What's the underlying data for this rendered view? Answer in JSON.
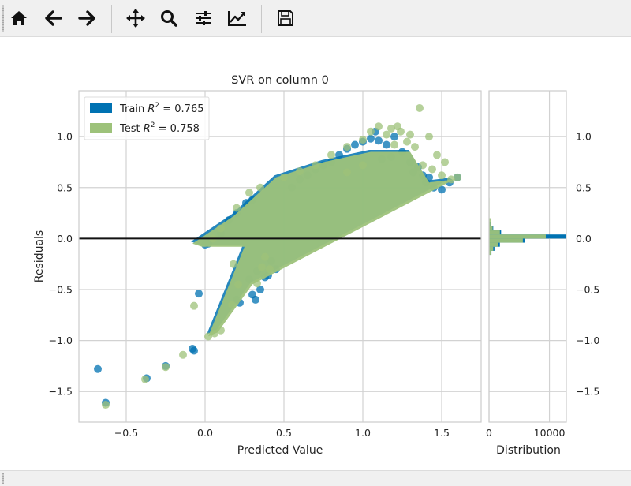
{
  "toolbar": {
    "buttons": [
      {
        "name": "home-button",
        "icon": "home-icon"
      },
      {
        "name": "back-button",
        "icon": "arrow-left-icon"
      },
      {
        "name": "forward-button",
        "icon": "arrow-right-icon"
      },
      {
        "name": "pan-button",
        "icon": "move-icon"
      },
      {
        "name": "zoom-button",
        "icon": "magnifier-icon"
      },
      {
        "name": "subplots-button",
        "icon": "sliders-icon"
      },
      {
        "name": "edit-axes-button",
        "icon": "line-chart-icon"
      },
      {
        "name": "save-button",
        "icon": "floppy-disk-icon"
      }
    ]
  },
  "status": {
    "text": ""
  },
  "chart_data": {
    "type": "scatter",
    "title": "SVR on column 0",
    "xlabel": "Predicted Value",
    "ylabel": "Residuals",
    "xlim": [
      -0.8,
      1.75
    ],
    "ylim": [
      -1.8,
      1.45
    ],
    "xticks": [
      -0.5,
      0.0,
      0.5,
      1.0,
      1.5
    ],
    "xtick_labels": [
      "−0.5",
      "0.0",
      "0.5",
      "1.0",
      "1.5"
    ],
    "yticks": [
      -1.5,
      -1.0,
      -0.5,
      0.0,
      0.5,
      1.0
    ],
    "ytick_labels": [
      "−1.5",
      "−1.0",
      "−0.5",
      "0.0",
      "0.5",
      "1.0"
    ],
    "grid": true,
    "legend_position": "upper-left",
    "zero_line": 0.0,
    "series": [
      {
        "name": "Train",
        "r2_label": "Train R² = 0.765",
        "label_prefix": "Train ",
        "label_suffix": " = 0.765",
        "color": "#0072b2",
        "points": [
          [
            -0.68,
            -1.28
          ],
          [
            -0.63,
            -1.61
          ],
          [
            -0.37,
            -1.37
          ],
          [
            -0.25,
            -1.25
          ],
          [
            -0.08,
            -1.08
          ],
          [
            -0.07,
            -1.1
          ],
          [
            -0.04,
            -0.54
          ],
          [
            0.0,
            -0.06
          ],
          [
            0.02,
            -0.05
          ],
          [
            0.2,
            -0.6
          ],
          [
            0.22,
            -0.63
          ],
          [
            0.28,
            -0.4
          ],
          [
            0.3,
            -0.55
          ],
          [
            0.32,
            -0.6
          ],
          [
            0.35,
            -0.5
          ],
          [
            0.38,
            -0.38
          ],
          [
            0.4,
            -0.36
          ],
          [
            0.45,
            -0.3
          ],
          [
            0.33,
            -0.32
          ],
          [
            0.42,
            -0.22
          ],
          [
            0.1,
            0.05
          ],
          [
            0.15,
            0.18
          ],
          [
            0.2,
            0.25
          ],
          [
            0.26,
            0.35
          ],
          [
            0.3,
            0.38
          ],
          [
            0.55,
            0.5
          ],
          [
            0.6,
            0.58
          ],
          [
            0.65,
            0.62
          ],
          [
            0.7,
            0.68
          ],
          [
            0.75,
            0.72
          ],
          [
            0.8,
            0.75
          ],
          [
            0.85,
            0.82
          ],
          [
            0.9,
            0.88
          ],
          [
            0.95,
            0.92
          ],
          [
            1.0,
            0.95
          ],
          [
            1.05,
            0.98
          ],
          [
            1.1,
            0.96
          ],
          [
            1.15,
            0.92
          ],
          [
            1.2,
            1.0
          ],
          [
            1.25,
            0.85
          ],
          [
            1.3,
            0.75
          ],
          [
            1.35,
            0.7
          ],
          [
            1.4,
            0.55
          ],
          [
            1.45,
            0.5
          ],
          [
            1.5,
            0.48
          ],
          [
            1.55,
            0.55
          ],
          [
            1.6,
            0.6
          ],
          [
            1.12,
            0.78
          ],
          [
            1.18,
            0.8
          ],
          [
            1.08,
            1.05
          ],
          [
            1.32,
            0.65
          ],
          [
            1.38,
            0.62
          ],
          [
            1.42,
            0.6
          ]
        ]
      },
      {
        "name": "Test",
        "r2_label": "Test R² = 0.758",
        "label_prefix": "Test ",
        "label_suffix": " = 0.758",
        "color": "#9dc27a",
        "points": [
          [
            -0.63,
            -1.63
          ],
          [
            -0.38,
            -1.38
          ],
          [
            -0.25,
            -1.26
          ],
          [
            -0.14,
            -1.14
          ],
          [
            -0.07,
            -0.66
          ],
          [
            0.02,
            -0.96
          ],
          [
            0.06,
            -0.93
          ],
          [
            0.1,
            -0.9
          ],
          [
            0.17,
            -0.65
          ],
          [
            0.21,
            -0.45
          ],
          [
            0.18,
            -0.25
          ],
          [
            0.36,
            -0.28
          ],
          [
            0.38,
            -0.18
          ],
          [
            0.33,
            -0.44
          ],
          [
            0.41,
            -0.3
          ],
          [
            0.05,
            0.0
          ],
          [
            0.1,
            0.1
          ],
          [
            0.2,
            0.3
          ],
          [
            0.28,
            0.45
          ],
          [
            0.35,
            0.5
          ],
          [
            0.5,
            0.6
          ],
          [
            0.6,
            0.66
          ],
          [
            0.7,
            0.72
          ],
          [
            0.8,
            0.82
          ],
          [
            0.9,
            0.9
          ],
          [
            1.0,
            0.97
          ],
          [
            1.1,
            1.1
          ],
          [
            1.18,
            1.08
          ],
          [
            1.22,
            1.1
          ],
          [
            1.24,
            1.05
          ],
          [
            1.3,
            1.02
          ],
          [
            1.36,
            1.28
          ],
          [
            1.42,
            1.0
          ],
          [
            1.47,
            0.82
          ],
          [
            1.52,
            0.75
          ],
          [
            1.56,
            0.58
          ],
          [
            1.6,
            0.6
          ],
          [
            1.33,
            0.9
          ],
          [
            1.2,
            0.92
          ],
          [
            1.05,
            1.05
          ],
          [
            1.15,
            1.02
          ],
          [
            1.28,
            0.95
          ],
          [
            1.38,
            0.72
          ],
          [
            1.44,
            0.68
          ],
          [
            1.5,
            0.62
          ],
          [
            0.9,
            0.65
          ],
          [
            1.0,
            0.72
          ]
        ],
        "bands": [
          [
            [
              -0.08,
              -0.05
            ],
            [
              0.18,
              0.22
            ],
            [
              0.45,
              0.6
            ],
            [
              0.75,
              0.75
            ],
            [
              1.05,
              0.85
            ],
            [
              1.3,
              0.85
            ],
            [
              1.42,
              0.55
            ],
            [
              1.58,
              0.58
            ],
            [
              0.3,
              -0.45
            ],
            [
              0.08,
              -0.92
            ],
            [
              0.02,
              -0.96
            ],
            [
              0.25,
              -0.08
            ],
            [
              -0.02,
              -0.08
            ]
          ]
        ]
      }
    ],
    "distribution": {
      "xlabel": "Distribution",
      "xlim": [
        0,
        12800
      ],
      "xticks": [
        0,
        10000
      ],
      "xtick_labels": [
        "0",
        "10000"
      ],
      "train_bins": [
        {
          "y0": -0.16,
          "y1": -0.12,
          "count": 400
        },
        {
          "y0": -0.12,
          "y1": -0.08,
          "count": 900
        },
        {
          "y0": -0.08,
          "y1": -0.04,
          "count": 1800
        },
        {
          "y0": -0.04,
          "y1": 0.0,
          "count": 6000
        },
        {
          "y0": 0.0,
          "y1": 0.04,
          "count": 12800
        },
        {
          "y0": 0.04,
          "y1": 0.08,
          "count": 2000
        },
        {
          "y0": 0.08,
          "y1": 0.12,
          "count": 700
        },
        {
          "y0": 0.12,
          "y1": 0.16,
          "count": 300
        }
      ],
      "test_bins": [
        {
          "y0": -0.16,
          "y1": -0.12,
          "count": 300
        },
        {
          "y0": -0.12,
          "y1": -0.08,
          "count": 700
        },
        {
          "y0": -0.08,
          "y1": -0.04,
          "count": 1500
        },
        {
          "y0": -0.04,
          "y1": 0.0,
          "count": 5600
        },
        {
          "y0": 0.0,
          "y1": 0.04,
          "count": 9400
        },
        {
          "y0": 0.04,
          "y1": 0.08,
          "count": 1800
        },
        {
          "y0": 0.08,
          "y1": 0.12,
          "count": 600
        },
        {
          "y0": 0.12,
          "y1": 0.2,
          "count": 250
        },
        {
          "y0": 0.2,
          "y1": 0.4,
          "count": 80
        }
      ]
    }
  }
}
